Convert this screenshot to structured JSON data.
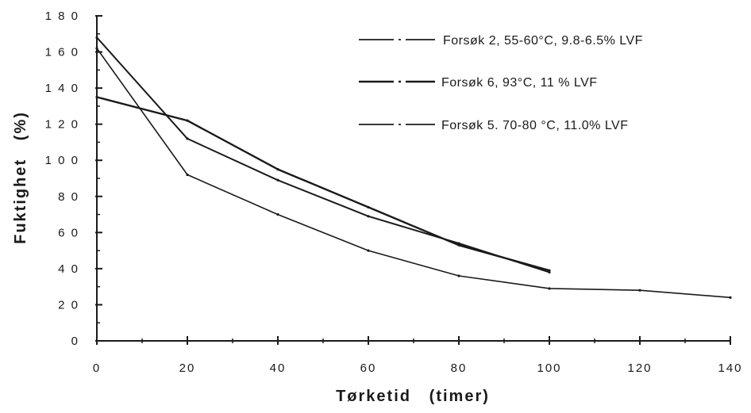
{
  "chart_data": {
    "type": "line",
    "title": "",
    "xlabel": "Tørketid   (timer)",
    "ylabel": "Fuktighet   (%)",
    "xlim": [
      0,
      140
    ],
    "ylim": [
      0,
      180
    ],
    "xticks": [
      0,
      20,
      40,
      60,
      80,
      100,
      120,
      140
    ],
    "yticks": [
      0,
      20,
      40,
      60,
      80,
      100,
      120,
      140,
      160,
      180
    ],
    "xtick_labels": [
      "0",
      "20",
      "40",
      "60",
      "80",
      "100",
      "120",
      "140"
    ],
    "ytick_labels": [
      "0",
      "2 0",
      "4 0",
      "6 0",
      "8 0",
      "1 0 0",
      "1 2 0",
      "1 4 0",
      "1 6 0",
      "1 8 0"
    ],
    "grid": false,
    "legend_position": "top-right",
    "series": [
      {
        "name": "Forsøk   2,  55-60°C,  9.8-6.5%  LVF",
        "x": [
          0,
          20,
          40,
          60,
          80,
          100,
          120,
          140
        ],
        "y": [
          162,
          92,
          70,
          50,
          36,
          29,
          28,
          24
        ]
      },
      {
        "name": "Forsøk  6, 93°C,  11 % LVF",
        "x": [
          0,
          20,
          40,
          60,
          80,
          100
        ],
        "y": [
          135,
          122,
          95,
          74,
          53,
          39
        ]
      },
      {
        "name": "Forsøk 5. 70-80 °C, 11.0% LVF",
        "x": [
          0,
          20,
          40,
          60,
          80,
          100
        ],
        "y": [
          168,
          112,
          89,
          69,
          54,
          38
        ]
      }
    ]
  }
}
